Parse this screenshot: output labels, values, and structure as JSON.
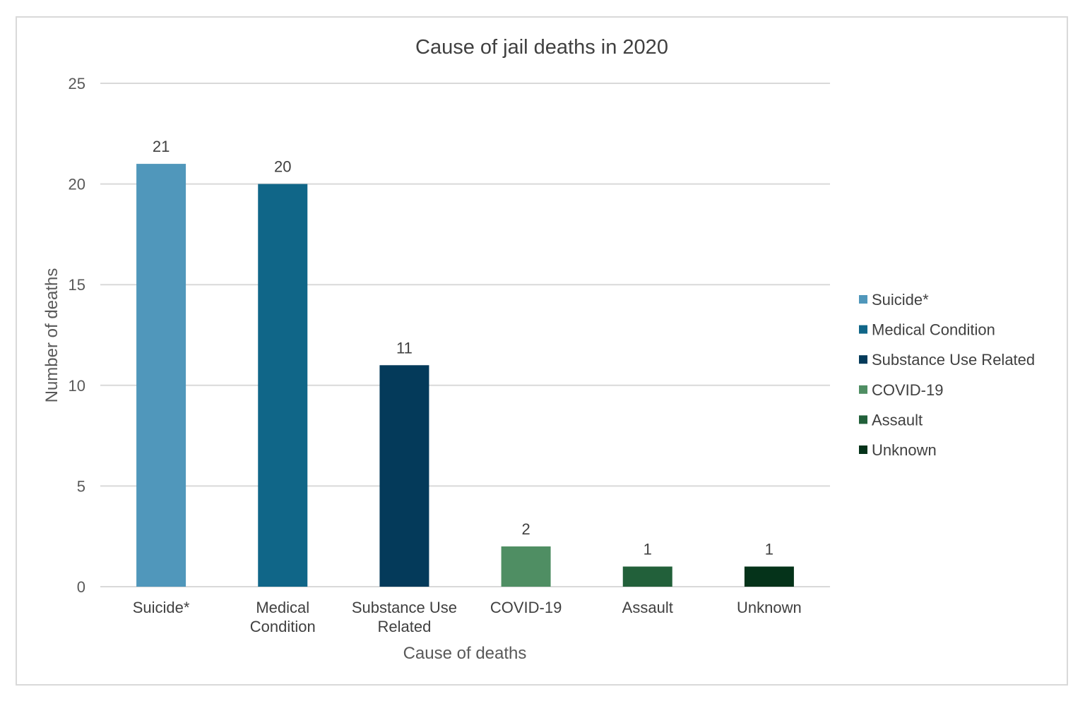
{
  "chart_data": {
    "type": "bar",
    "title": "Cause of jail deaths in 2020",
    "xlabel": "Cause of deaths",
    "ylabel": "Number of deaths",
    "ylim": [
      0,
      25
    ],
    "yticks": [
      0,
      5,
      10,
      15,
      20,
      25
    ],
    "grid": true,
    "legend_position": "right",
    "categories": [
      [
        "Suicide*"
      ],
      [
        "Medical",
        "Condition"
      ],
      [
        "Substance Use",
        "Related"
      ],
      [
        "COVID-19"
      ],
      [
        "Assault"
      ],
      [
        "Unknown"
      ]
    ],
    "legend": [
      "Suicide*",
      "Medical Condition",
      "Substance Use Related",
      "COVID-19",
      "Assault",
      "Unknown"
    ],
    "values": [
      21,
      20,
      11,
      2,
      1,
      1
    ],
    "colors": [
      "#5097bb",
      "#106688",
      "#043a5a",
      "#4f8e63",
      "#22603a",
      "#05331a"
    ]
  }
}
